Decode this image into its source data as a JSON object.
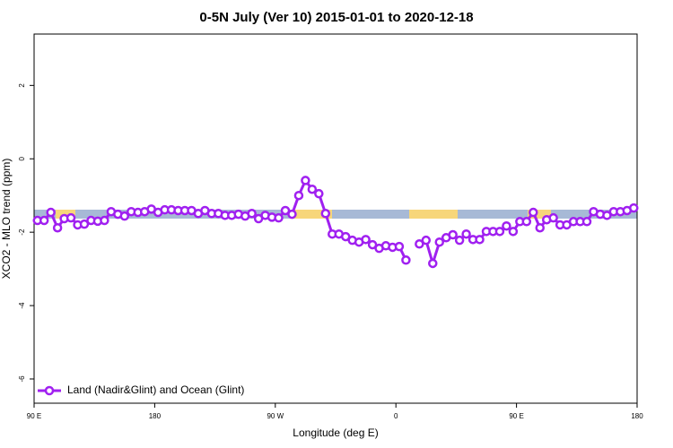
{
  "chart_data": {
    "type": "line",
    "title": "0-5N July (Ver 10)   2015-01-01 to 2020-12-18",
    "x_label": "Longitude (deg E)",
    "y_label": "XCO2 - MLO trend (ppm)",
    "xlim": [
      90,
      540
    ],
    "ylim": [
      -6.66,
      3.4
    ],
    "xticks": [
      {
        "value": 90,
        "label": "90 E"
      },
      180,
      {
        "value": 270,
        "label": "90 W"
      },
      {
        "value": 360,
        "label": "0"
      },
      {
        "value": 450,
        "label": "90 E"
      },
      {
        "value": 540,
        "label": "180"
      }
    ],
    "yticks": [
      2,
      0,
      -2,
      -4,
      -6
    ],
    "legend": "bottom-left",
    "x": [
      92.5,
      97.5,
      102.5,
      107.5,
      112.5,
      117.5,
      122.5,
      127.5,
      132.5,
      137.5,
      142.5,
      147.5,
      152.5,
      157.5,
      162.5,
      167.5,
      172.5,
      177.5,
      182.5,
      187.5,
      192.5,
      197.5,
      202.5,
      207.5,
      212.5,
      217.5,
      222.5,
      227.5,
      232.5,
      237.5,
      242.5,
      247.5,
      252.5,
      257.5,
      262.5,
      267.5,
      272.5,
      277.5,
      282.5,
      287.5,
      292.5,
      297.5,
      302.5,
      307.5,
      312.5,
      317.5,
      322.5,
      327.5,
      332.5,
      337.5,
      342.5,
      347.5,
      352.5,
      357.5,
      362.5,
      367.5,
      372.5,
      377.5,
      382.5,
      387.5,
      392.5,
      397.5,
      402.5,
      407.5,
      412.5,
      417.5,
      422.5,
      427.5,
      432.5,
      437.5,
      442.5,
      447.5,
      452.5,
      457.5,
      462.5,
      467.5,
      472.5,
      477.5,
      482.5,
      487.5,
      492.5,
      497.5,
      502.5,
      507.5,
      512.5,
      517.5,
      522.5,
      527.5,
      532.5,
      537.5
    ],
    "series": [
      {
        "name": "Land (Nadir&Glint) and Ocean (Glint)",
        "color": "#a020f0",
        "values": [
          -1.68,
          -1.68,
          -1.46,
          -1.88,
          -1.63,
          -1.61,
          -1.8,
          -1.78,
          -1.68,
          -1.7,
          -1.68,
          -1.44,
          -1.51,
          -1.56,
          -1.44,
          -1.46,
          -1.44,
          -1.37,
          -1.46,
          -1.39,
          -1.39,
          -1.41,
          -1.41,
          -1.41,
          -1.49,
          -1.41,
          -1.49,
          -1.49,
          -1.54,
          -1.54,
          -1.51,
          -1.56,
          -1.49,
          -1.63,
          -1.54,
          -1.59,
          -1.61,
          -1.41,
          -1.51,
          -1.0,
          -0.59,
          -0.83,
          -0.95,
          -1.49,
          -2.05,
          -2.05,
          -2.12,
          -2.22,
          -2.27,
          -2.2,
          -2.34,
          -2.44,
          -2.37,
          -2.41,
          -2.39,
          -2.76,
          null,
          -2.32,
          -2.22,
          -2.85,
          -2.27,
          -2.15,
          -2.07,
          -2.22,
          -2.05,
          -2.2,
          -2.2,
          -1.98,
          -1.98,
          -1.98,
          -1.83,
          -1.98,
          -1.71,
          -1.71,
          -1.46,
          -1.88,
          -1.66,
          -1.61,
          -1.8,
          -1.8,
          -1.71,
          -1.71,
          -1.71,
          -1.44,
          -1.51,
          -1.54,
          -1.44,
          -1.44,
          -1.41,
          -1.34
        ]
      }
    ]
  }
}
